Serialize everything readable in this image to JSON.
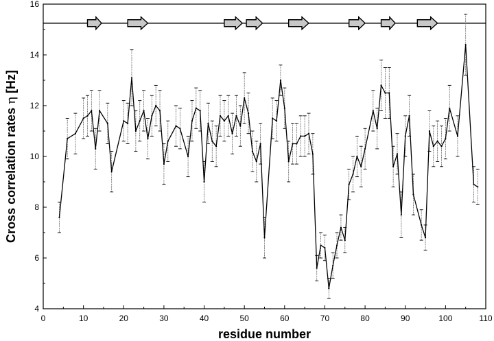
{
  "chart_data": {
    "type": "line",
    "title": "",
    "xlabel": "residue number",
    "ylabel_prefix": "Cross correlation rates ",
    "ylabel_symbol": "η",
    "ylabel_suffix": " [Hz]",
    "xlim": [
      0,
      110
    ],
    "ylim": [
      4,
      16
    ],
    "xticks": [
      0,
      10,
      20,
      30,
      40,
      50,
      60,
      70,
      80,
      90,
      100,
      110
    ],
    "yticks": [
      4,
      6,
      8,
      10,
      12,
      14,
      16
    ],
    "grid": false,
    "legend": "none",
    "colors": {
      "line": "#000000",
      "error_bar": "#555555",
      "strand_fill": "#c8c8c8"
    },
    "series": [
      {
        "x": [
          4,
          6,
          8,
          10,
          11,
          12,
          13,
          14,
          16,
          17,
          20,
          21,
          22,
          23,
          24,
          25,
          26,
          27,
          28,
          29,
          30,
          31,
          33,
          34,
          36,
          37,
          38,
          39,
          40,
          41,
          42,
          43,
          44,
          45,
          46,
          47,
          48,
          49,
          50,
          51,
          52,
          53,
          54,
          55,
          57,
          58,
          59,
          60,
          61,
          62,
          63,
          64,
          65,
          66,
          67,
          68,
          69,
          70,
          71,
          72,
          73,
          74,
          75,
          76,
          77,
          78,
          79,
          80,
          82,
          83,
          84,
          85,
          86,
          87,
          88,
          89,
          90,
          91,
          92,
          94,
          95,
          96,
          97,
          98,
          99,
          100,
          101,
          103,
          105,
          107,
          108
        ],
        "y": [
          7.6,
          10.7,
          10.9,
          11.5,
          11.6,
          11.8,
          10.3,
          11.8,
          11.3,
          9.4,
          11.4,
          11.3,
          13.1,
          11.0,
          11.4,
          11.8,
          10.7,
          11.6,
          12.0,
          11.8,
          9.7,
          10.6,
          11.2,
          11.1,
          10.0,
          11.4,
          11.9,
          11.8,
          9.0,
          11.3,
          10.6,
          10.4,
          11.6,
          11.4,
          11.6,
          10.9,
          11.6,
          11.2,
          12.3,
          11.7,
          10.2,
          9.8,
          10.5,
          6.8,
          11.5,
          11.4,
          13.0,
          11.9,
          9.8,
          10.5,
          10.5,
          10.8,
          10.8,
          10.9,
          10.1,
          5.6,
          6.5,
          6.4,
          4.8,
          5.7,
          6.5,
          7.2,
          6.7,
          8.9,
          9.3,
          10.0,
          9.6,
          10.3,
          11.8,
          11.1,
          12.8,
          12.5,
          12.5,
          9.6,
          10.1,
          7.7,
          10.8,
          11.6,
          8.5,
          7.3,
          6.8,
          11.0,
          10.4,
          10.6,
          10.4,
          10.7,
          11.9,
          10.8,
          14.4,
          8.9,
          8.8
        ]
      }
    ],
    "error_bar_halfwidth": [
      0.6,
      0.8,
      0.8,
      0.8,
      0.8,
      0.8,
      0.8,
      0.8,
      0.8,
      0.8,
      0.8,
      0.8,
      1.1,
      0.8,
      0.8,
      0.8,
      0.8,
      0.8,
      0.8,
      0.8,
      0.8,
      0.8,
      0.8,
      0.8,
      0.8,
      0.8,
      0.8,
      0.8,
      0.8,
      0.8,
      0.8,
      0.8,
      0.8,
      0.8,
      0.8,
      0.8,
      0.8,
      0.8,
      1.0,
      0.8,
      0.8,
      0.8,
      0.8,
      0.8,
      0.8,
      0.8,
      0.6,
      0.8,
      0.8,
      0.8,
      0.8,
      0.8,
      0.8,
      0.8,
      0.8,
      0.5,
      0.5,
      0.5,
      0.4,
      0.5,
      0.5,
      0.5,
      0.5,
      0.6,
      0.7,
      0.8,
      0.8,
      0.8,
      0.8,
      0.8,
      1.0,
      1.0,
      1.0,
      0.8,
      0.8,
      0.9,
      0.8,
      0.8,
      0.8,
      0.6,
      0.5,
      0.8,
      0.8,
      0.8,
      0.8,
      0.8,
      0.9,
      0.8,
      1.2,
      0.7,
      0.7
    ],
    "secondary_structure": {
      "baseline_y": 15.25,
      "strands": [
        [
          11,
          14.5
        ],
        [
          21,
          26
        ],
        [
          45,
          49.5
        ],
        [
          50.5,
          54.5
        ],
        [
          61,
          66
        ],
        [
          76,
          80
        ],
        [
          84,
          87.5
        ],
        [
          93,
          98
        ]
      ]
    }
  }
}
